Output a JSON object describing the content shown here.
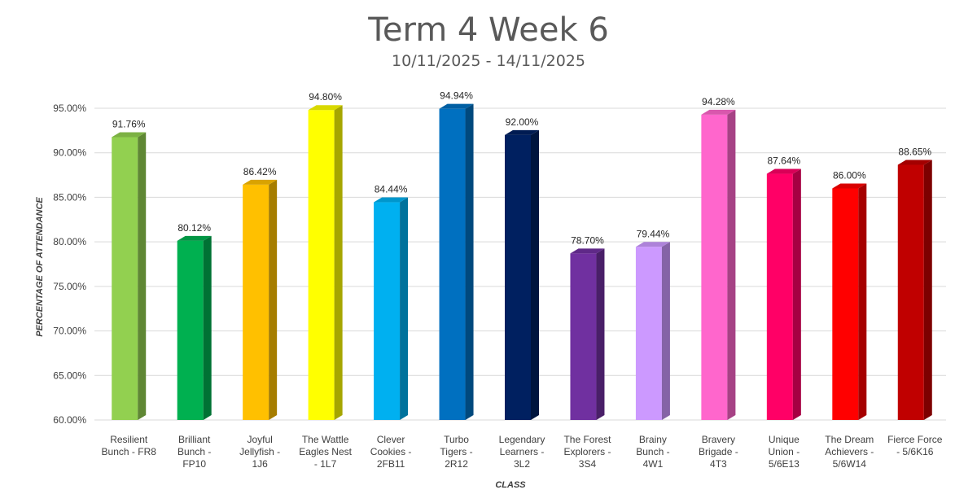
{
  "chart_data": {
    "type": "bar",
    "title": "Term 4 Week 6",
    "subtitle": "10/11/2025 - 14/11/2025",
    "xlabel": "CLASS",
    "ylabel": "PERCENTAGE OF ATTENDANCE",
    "ylim": [
      60,
      95
    ],
    "yticks": [
      "60.00%",
      "65.00%",
      "70.00%",
      "75.00%",
      "80.00%",
      "85.00%",
      "90.00%",
      "95.00%"
    ],
    "grid": true,
    "categories": [
      [
        "Resilient",
        "Bunch - FR8"
      ],
      [
        "Brilliant",
        "Bunch -",
        "FP10"
      ],
      [
        "Joyful",
        "Jellyfish -",
        "1J6"
      ],
      [
        "The Wattle",
        "Eagles Nest",
        "- 1L7"
      ],
      [
        "Clever",
        "Cookies -",
        "2FB11"
      ],
      [
        "Turbo",
        "Tigers -",
        "2R12"
      ],
      [
        "Legendary",
        "Learners -",
        "3L2"
      ],
      [
        "The Forest",
        "Explorers -",
        "3S4"
      ],
      [
        "Brainy",
        "Bunch -",
        "4W1"
      ],
      [
        "Bravery",
        "Brigade -",
        "4T3"
      ],
      [
        "Unique",
        "Union -",
        "5/6E13"
      ],
      [
        "The Dream",
        "Achievers -",
        "5/6W14"
      ],
      [
        "Fierce Force",
        "- 5/6K16"
      ]
    ],
    "values": [
      91.76,
      80.12,
      86.42,
      94.8,
      84.44,
      94.94,
      92.0,
      78.7,
      79.44,
      94.28,
      87.64,
      86.0,
      88.65
    ],
    "value_labels": [
      "91.76%",
      "80.12%",
      "86.42%",
      "94.80%",
      "84.44%",
      "94.94%",
      "92.00%",
      "78.70%",
      "79.44%",
      "94.28%",
      "87.64%",
      "86.00%",
      "88.65%"
    ],
    "colors": [
      "#92D050",
      "#00B050",
      "#FFC000",
      "#FFFF00",
      "#00B0F0",
      "#0070C0",
      "#002060",
      "#7030A0",
      "#CC99FF",
      "#FF66CC",
      "#FF0066",
      "#FF0000",
      "#C00000"
    ]
  }
}
